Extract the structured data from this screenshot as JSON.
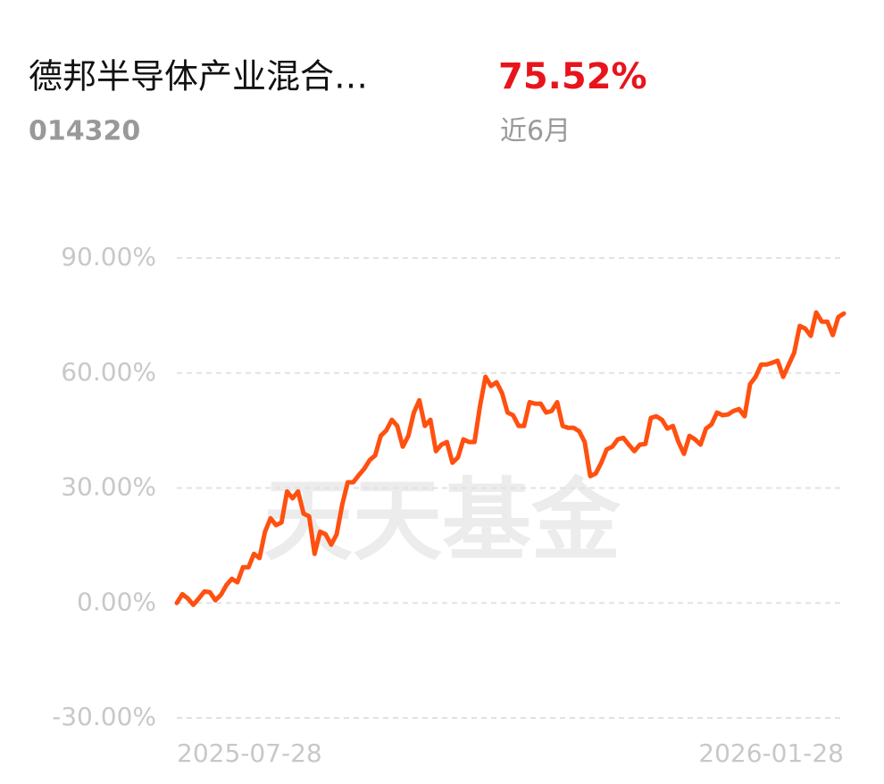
{
  "header": {
    "title": "德邦半导体产业混合…",
    "code": "014320",
    "return": "75.52%",
    "period": "近6月"
  },
  "chart_data": {
    "type": "line",
    "annotations": [
      "天天基金"
    ],
    "categories": [
      "2025-07-28",
      null,
      null,
      null,
      null,
      null,
      null,
      null,
      null,
      null,
      null,
      null,
      null,
      null,
      null,
      null,
      null,
      null,
      null,
      null,
      null,
      null,
      null,
      null,
      null,
      null,
      null,
      null,
      null,
      null,
      null,
      null,
      null,
      null,
      null,
      null,
      null,
      null,
      null,
      null,
      null,
      null,
      null,
      null,
      null,
      null,
      null,
      null,
      null,
      null,
      null,
      null,
      null,
      null,
      null,
      null,
      null,
      null,
      null,
      null,
      null,
      null,
      null,
      null,
      null,
      null,
      null,
      null,
      null,
      null,
      null,
      null,
      null,
      null,
      null,
      null,
      null,
      null,
      null,
      null,
      null,
      null,
      null,
      null,
      null,
      null,
      null,
      null,
      null,
      null,
      null,
      null,
      null,
      null,
      null,
      null,
      null,
      null,
      null,
      null,
      null,
      null,
      null,
      null,
      null,
      null,
      null,
      null,
      null,
      null,
      null,
      null,
      null,
      null,
      null,
      null,
      null,
      null,
      null,
      null,
      null,
      "2026-01-28"
    ],
    "values": [
      0,
      2.3,
      1.2,
      -0.5,
      1.2,
      3,
      2.8,
      0.7,
      2.1,
      4.7,
      6.3,
      5.4,
      9.3,
      9.3,
      12.8,
      11.7,
      18.6,
      22.1,
      20.3,
      21,
      29.1,
      27.3,
      29.1,
      23.3,
      22.6,
      12.8,
      18.6,
      17.9,
      15.2,
      17.9,
      25.6,
      31.5,
      31.5,
      33.3,
      35,
      37.3,
      38.5,
      43.6,
      45,
      47.8,
      46.2,
      40.8,
      43.6,
      49.7,
      52.9,
      46.2,
      47.8,
      39.6,
      41.3,
      42,
      36.6,
      38,
      42.7,
      42,
      42,
      51.3,
      59,
      56.6,
      57.6,
      54.8,
      49.7,
      49,
      46.2,
      46.2,
      52.4,
      52,
      52,
      49.7,
      50.1,
      52.4,
      46.2,
      45.7,
      45.7,
      44.8,
      42,
      33.1,
      33.8,
      36.6,
      40.1,
      40.8,
      42.7,
      43.1,
      41.3,
      39.6,
      41.3,
      41.5,
      48.3,
      48.7,
      47.8,
      45.5,
      46.2,
      42,
      38.9,
      43.6,
      42.7,
      41.3,
      45.5,
      46.6,
      49.7,
      49,
      49.2,
      50.1,
      50.6,
      48.7,
      57.1,
      59,
      62.2,
      62.2,
      62.7,
      63.2,
      59,
      62.2,
      65.3,
      72.3,
      71.6,
      69.7,
      75.8,
      73.4,
      73.4,
      69.9,
      74.6,
      75.52
    ],
    "color": "#ff5010",
    "ylim": [
      -30,
      90
    ],
    "yticks": [
      {
        "value": -30,
        "label": "-30.00%"
      },
      {
        "value": 0,
        "label": "0.00%"
      },
      {
        "value": 30,
        "label": "30.00%"
      },
      {
        "value": 60,
        "label": "60.00%"
      },
      {
        "value": 90,
        "label": "90.00%"
      }
    ],
    "grid": true
  }
}
